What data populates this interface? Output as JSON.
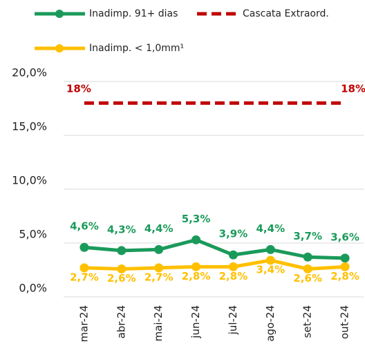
{
  "chart_data": {
    "type": "line",
    "categories": [
      "mar-24",
      "abr-24",
      "mai-24",
      "jun-24",
      "jul-24",
      "ago-24",
      "set-24",
      "out-24"
    ],
    "series": [
      {
        "name": "Inadimp. 91+ dias",
        "color": "#1a9a5a",
        "values": [
          4.6,
          4.3,
          4.4,
          5.3,
          3.9,
          4.4,
          3.7,
          3.6
        ],
        "value_labels": [
          "4,6%",
          "4,3%",
          "4,4%",
          "5,3%",
          "3,9%",
          "4,4%",
          "3,7%",
          "3,6%"
        ],
        "dashed": false,
        "markers": true,
        "label_position": "above"
      },
      {
        "name": "Cascata Extraord.",
        "color": "#c00000",
        "values": [
          18,
          18,
          18,
          18,
          18,
          18,
          18,
          18
        ],
        "value_labels": [
          "18%",
          null,
          null,
          null,
          null,
          null,
          null,
          "18%"
        ],
        "dashed": true,
        "markers": false,
        "label_position": "above"
      },
      {
        "name": "Inadimp. < 1,0mm¹",
        "color": "#ffc000",
        "values": [
          2.7,
          2.6,
          2.7,
          2.8,
          2.8,
          3.4,
          2.6,
          2.8
        ],
        "value_labels": [
          "2,7%",
          "2,6%",
          "2,7%",
          "2,8%",
          "2,8%",
          "3,4%",
          "2,6%",
          "2,8%"
        ],
        "dashed": false,
        "markers": true,
        "label_position": "below"
      }
    ],
    "ylim": [
      0,
      20
    ],
    "yticks": [
      {
        "value": 0,
        "label": "0,0%"
      },
      {
        "value": 5,
        "label": "5,0%"
      },
      {
        "value": 10,
        "label": "10,0%"
      },
      {
        "value": 15,
        "label": "15,0%"
      },
      {
        "value": 20,
        "label": "20,0%"
      }
    ],
    "grid": true,
    "legend": "top"
  }
}
